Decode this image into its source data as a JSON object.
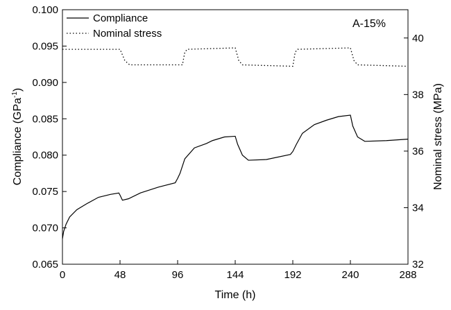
{
  "chart_data": {
    "type": "line",
    "xlabel": "Time (h)",
    "ylabel": {
      "text": "Compliance (GPa",
      "sup": "-1",
      "end": ")"
    },
    "y2label": "Nominal stress (MPa)",
    "annotation": "A-15%",
    "legend": "upper left",
    "xlim": [
      0,
      288
    ],
    "xticks": [
      0,
      48,
      96,
      144,
      192,
      240,
      288
    ],
    "ylim": [
      0.065,
      0.1
    ],
    "yticks": [
      0.065,
      {
        "value": 0.07,
        "label": "0.070"
      },
      0.075,
      {
        "value": 0.08,
        "label": "0.080"
      },
      0.085,
      {
        "value": 0.09,
        "label": "0.090"
      },
      0.095,
      {
        "value": 0.1,
        "label": "0.100"
      }
    ],
    "y2lim": [
      32,
      41
    ],
    "y2ticks": [
      32,
      34,
      36,
      38,
      40
    ],
    "series": [
      {
        "name": "Compliance",
        "color": "#000000",
        "style": "solid",
        "x": [
          0,
          1,
          3,
          6,
          12,
          20,
          30,
          40,
          47,
          48,
          50,
          55,
          65,
          80,
          94,
          96,
          98,
          102,
          110,
          120,
          125,
          135,
          144,
          146,
          150,
          155,
          170,
          190,
          192,
          195,
          200,
          210,
          220,
          230,
          240,
          242,
          246,
          252,
          270,
          288
        ],
        "values": [
          0.0685,
          0.0695,
          0.0705,
          0.0715,
          0.0725,
          0.0733,
          0.0742,
          0.0746,
          0.0748,
          0.0745,
          0.0738,
          0.074,
          0.0748,
          0.0756,
          0.0762,
          0.0768,
          0.0775,
          0.0795,
          0.081,
          0.0816,
          0.082,
          0.0825,
          0.0826,
          0.0815,
          0.08,
          0.0793,
          0.0794,
          0.0801,
          0.0805,
          0.0815,
          0.083,
          0.0842,
          0.0848,
          0.0853,
          0.0855,
          0.084,
          0.0825,
          0.0819,
          0.082,
          0.0822
        ]
      },
      {
        "name": "Nominal stress",
        "color": "#000000",
        "style": "dotted",
        "axis": "y2",
        "x": [
          0,
          48,
          52,
          56,
          100,
          102,
          104,
          144,
          147,
          150,
          192,
          194,
          196,
          240,
          243,
          246,
          288
        ],
        "values": [
          39.6,
          39.6,
          39.2,
          39.05,
          39.05,
          39.5,
          39.6,
          39.65,
          39.2,
          39.05,
          39.0,
          39.5,
          39.6,
          39.65,
          39.2,
          39.05,
          39.0
        ]
      }
    ]
  }
}
